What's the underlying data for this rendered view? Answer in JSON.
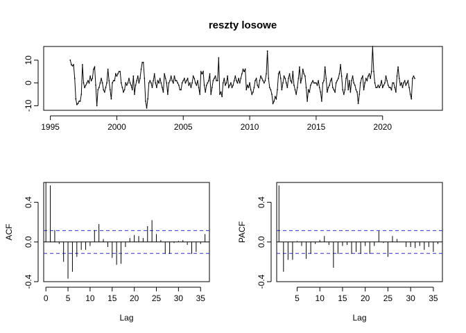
{
  "chart_data": [
    {
      "type": "line",
      "title": "reszty losowe",
      "xlabel": "",
      "ylabel": "",
      "xlim": [
        1994.5,
        2024.5
      ],
      "ylim": [
        -12,
        16
      ],
      "xticks": [
        1995,
        2000,
        2005,
        2010,
        2015,
        2020
      ],
      "yticks": [
        -10,
        0,
        10
      ],
      "x_start": 1996.5,
      "x_step": 0.08333,
      "values": [
        10,
        8,
        7.5,
        8,
        2,
        -7,
        -9.5,
        -9,
        -8,
        -8,
        -5,
        8,
        0,
        -2,
        -1,
        0,
        1,
        0,
        3,
        1,
        2,
        6,
        7,
        -1,
        -10,
        -3,
        -2,
        0,
        2,
        0,
        -3,
        -4,
        -2,
        0,
        6,
        1,
        -3,
        -7,
        0,
        1,
        1,
        4,
        3,
        4,
        5,
        5,
        0,
        -2,
        -4,
        -3,
        0,
        -1,
        0,
        2,
        0,
        -1,
        -3,
        3,
        -5,
        -1,
        1,
        3,
        0,
        2,
        6,
        9,
        9,
        2,
        -8,
        -11,
        -7,
        0,
        1,
        0,
        -2,
        1,
        4,
        0,
        -2,
        1,
        0,
        2,
        0,
        -2,
        -4,
        4,
        2,
        0,
        -5,
        0,
        1,
        3,
        1,
        0,
        3,
        1,
        1,
        0,
        -1,
        -3,
        -3,
        0,
        1,
        2,
        0,
        1,
        2,
        -1,
        0,
        -2,
        0,
        3,
        2,
        0,
        -1,
        1,
        -2,
        -5,
        5,
        4,
        5,
        -1,
        -4,
        -1,
        0,
        1,
        4,
        -5,
        -2,
        1,
        2,
        3,
        1,
        1,
        11,
        -5,
        -4,
        -6,
        0,
        2,
        -1,
        0,
        3,
        -2,
        -1,
        0,
        -2,
        -1,
        1,
        3,
        1,
        0,
        2,
        0,
        2,
        4,
        6,
        5,
        6,
        -3,
        -1,
        -2,
        0,
        -3,
        -5,
        -4,
        -2,
        1,
        2,
        -1,
        -2,
        1,
        3,
        2,
        1,
        0,
        1,
        4,
        14,
        2,
        -2,
        -3,
        -5,
        -9,
        -8,
        -6,
        -7,
        -3,
        4,
        5,
        2,
        -3,
        0,
        3,
        2,
        0,
        -2,
        2,
        4,
        1,
        0,
        5,
        -1,
        -3,
        -5,
        -2,
        2,
        7,
        0,
        2,
        6,
        4,
        3,
        -2,
        -8,
        -3,
        -4,
        -1,
        0,
        1,
        0,
        0,
        0,
        -1,
        1,
        -2,
        -4,
        -8,
        0,
        1,
        7,
        2,
        -4,
        -2,
        -1,
        1,
        2,
        -2,
        -3,
        -4,
        0,
        1,
        2,
        4,
        8,
        3,
        -3,
        -5,
        -3,
        2,
        4,
        -3,
        1,
        -4,
        1,
        3,
        0,
        -1,
        -3,
        -4,
        -9,
        -5,
        0,
        2,
        3,
        -3,
        0,
        2,
        1,
        3,
        4,
        2,
        5,
        16,
        5,
        0,
        -2,
        -2,
        -1,
        -2,
        -1,
        1,
        -2,
        -1,
        0,
        3,
        1,
        -1,
        -2,
        -2,
        -3,
        0,
        0,
        -2,
        -4,
        3,
        7,
        2,
        -1,
        0,
        -2,
        0,
        1,
        -1,
        0,
        1,
        -2,
        -5,
        -7,
        2,
        3,
        2
      ]
    },
    {
      "type": "bar",
      "title": "",
      "xlabel": "Lag",
      "ylabel": "ACF",
      "xlim": [
        -0.5,
        37
      ],
      "ylim": [
        -0.4,
        0.6
      ],
      "xticks": [
        0,
        5,
        10,
        15,
        20,
        25,
        30,
        35
      ],
      "yticks": [
        -0.4,
        0.0,
        0.4
      ],
      "conf_limit": 0.115,
      "lags": [
        1,
        2,
        3,
        4,
        5,
        6,
        7,
        8,
        9,
        10,
        11,
        12,
        13,
        14,
        15,
        16,
        17,
        18,
        19,
        20,
        21,
        22,
        23,
        24,
        25,
        26,
        27,
        28,
        29,
        30,
        31,
        32,
        33,
        34,
        35,
        36
      ],
      "values": [
        0.57,
        0.12,
        -0.02,
        -0.2,
        -0.37,
        -0.3,
        -0.15,
        -0.08,
        -0.08,
        -0.04,
        0.12,
        0.18,
        0.03,
        -0.05,
        -0.16,
        -0.23,
        -0.22,
        -0.05,
        0.04,
        0.07,
        0.06,
        0.04,
        0.16,
        0.22,
        0.08,
        0.02,
        -0.12,
        -0.12,
        -0.01,
        0.01,
        0.02,
        -0.03,
        -0.12,
        -0.1,
        -0.02,
        0.08
      ]
    },
    {
      "type": "bar",
      "title": "",
      "xlabel": "Lag",
      "ylabel": "PACF",
      "xlim": [
        0.5,
        37
      ],
      "ylim": [
        -0.4,
        0.6
      ],
      "xticks": [
        5,
        10,
        15,
        20,
        25,
        30,
        35
      ],
      "yticks": [
        -0.4,
        0.0,
        0.4
      ],
      "conf_limit": 0.115,
      "lags": [
        1,
        2,
        3,
        4,
        5,
        6,
        7,
        8,
        9,
        10,
        11,
        12,
        13,
        14,
        15,
        16,
        17,
        18,
        19,
        20,
        21,
        22,
        23,
        24,
        25,
        26,
        27,
        28,
        29,
        30,
        31,
        32,
        33,
        34,
        35,
        36
      ],
      "values": [
        0.57,
        -0.3,
        -0.18,
        -0.18,
        0.01,
        -0.04,
        -0.17,
        -0.12,
        -0.02,
        0.02,
        0.06,
        -0.03,
        -0.26,
        -0.12,
        -0.04,
        -0.03,
        -0.12,
        -0.1,
        -0.12,
        -0.04,
        -0.12,
        -0.04,
        0.11,
        -0.01,
        -0.15,
        0.06,
        0.03,
        0.0,
        -0.05,
        -0.05,
        -0.06,
        -0.04,
        -0.08,
        -0.05,
        -0.1,
        -0.02
      ]
    }
  ]
}
